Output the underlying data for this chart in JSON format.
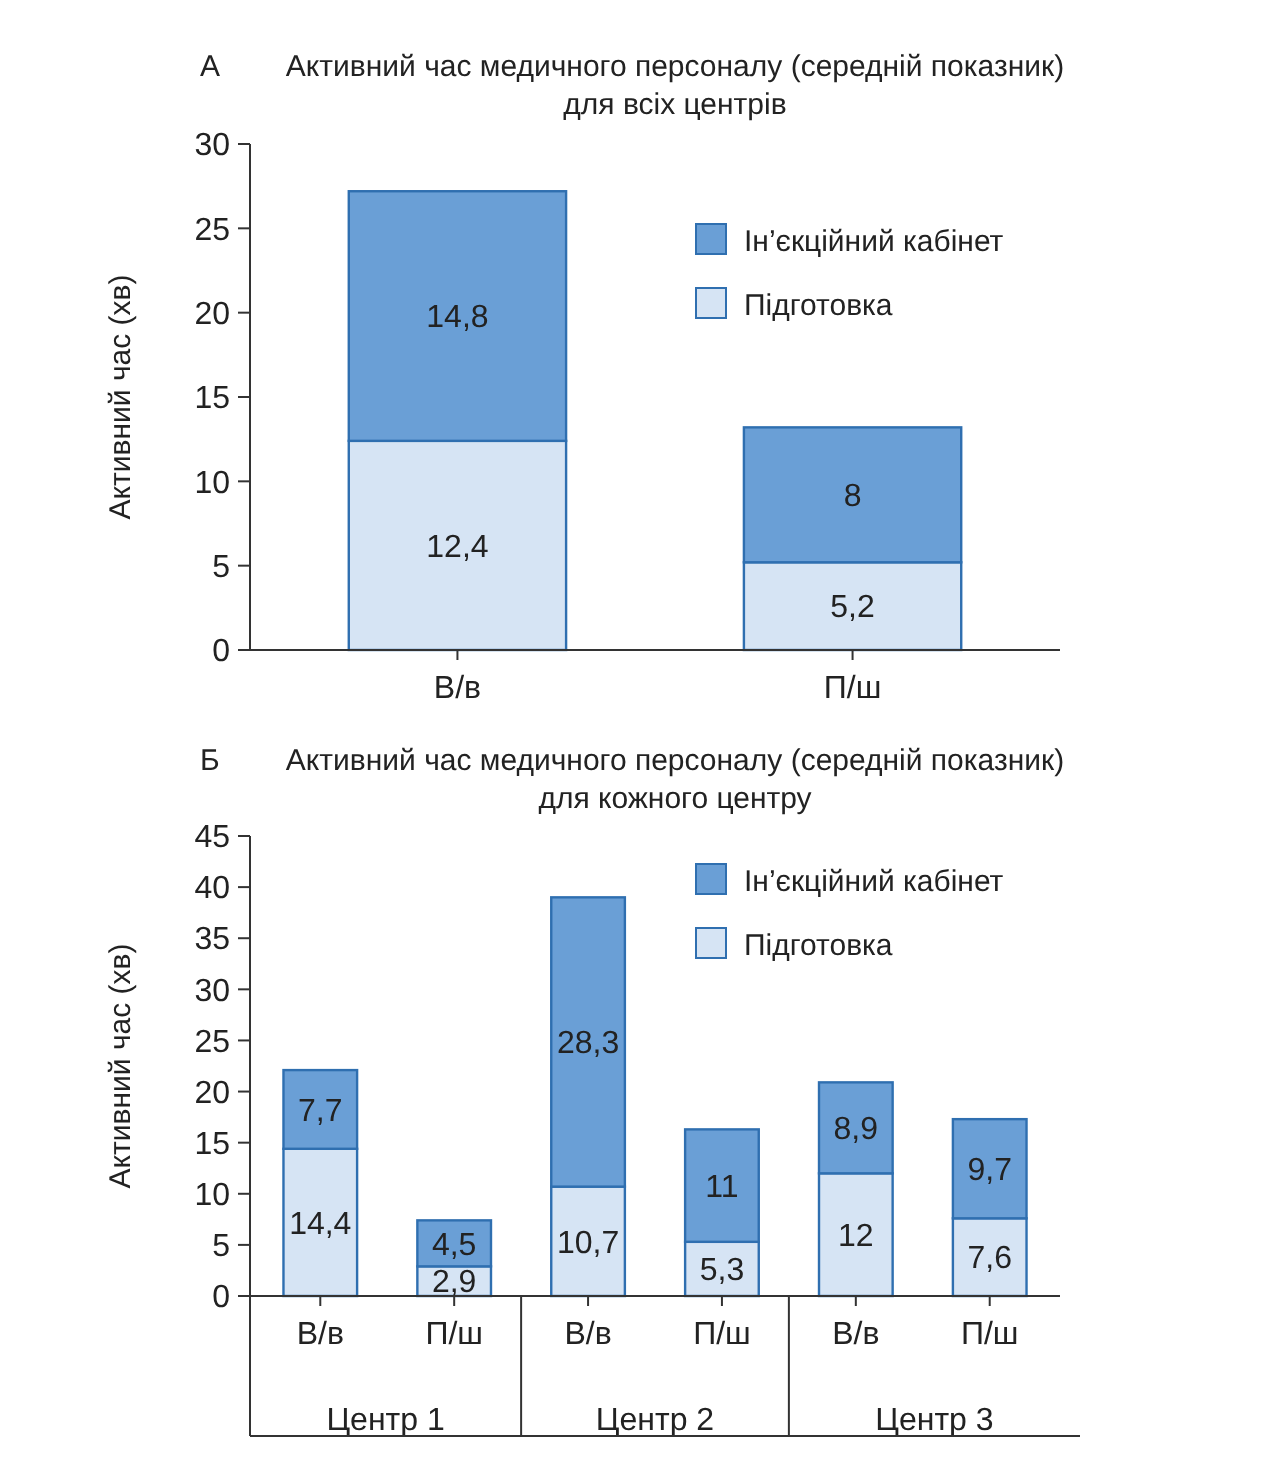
{
  "chart_data": [
    {
      "type": "bar",
      "title": "Активний час медичного персоналу (середній показник)\nдля всіх центрів",
      "ylabel": "Активний час (хв)",
      "annotations": [
        "А"
      ],
      "categories": [
        "В/в",
        "П/ш"
      ],
      "stacked": true,
      "legend": "top right",
      "ylim": [
        0,
        30
      ],
      "yticks": [
        0,
        5,
        10,
        15,
        20,
        25,
        30
      ],
      "series": [
        {
          "name": "Підготовка",
          "color": "#d6e4f4",
          "values": [
            12.4,
            5.2
          ],
          "value_labels": [
            "12,4",
            "5,2"
          ]
        },
        {
          "name": "Ін’єкційний кабінет",
          "color": "#6a9fd6",
          "values": [
            14.8,
            8
          ],
          "value_labels": [
            "14,8",
            "8"
          ]
        }
      ]
    },
    {
      "type": "bar",
      "title": "Активний час медичного персоналу (середній показник)\nдля кожного центру",
      "ylabel": "Активний час (хв)",
      "annotations": [
        "Б",
        "Центр 1",
        "Центр 2",
        "Центр 3"
      ],
      "categories": [
        "В/в",
        "П/ш",
        "В/в",
        "П/ш",
        "В/в",
        "П/ш"
      ],
      "stacked": true,
      "legend": "top right",
      "ylim": [
        0,
        45
      ],
      "yticks": [
        0,
        5,
        10,
        15,
        20,
        25,
        30,
        35,
        40,
        45
      ],
      "series": [
        {
          "name": "Підготовка",
          "color": "#d6e4f4",
          "values": [
            14.4,
            2.9,
            10.7,
            5.3,
            12,
            7.6
          ],
          "value_labels": [
            "14,4",
            "2,9",
            "10,7",
            "5,3",
            "12",
            "7,6"
          ]
        },
        {
          "name": "Ін’єкційний кабінет",
          "color": "#6a9fd6",
          "values": [
            7.7,
            4.5,
            28.3,
            11,
            8.9,
            9.7
          ],
          "value_labels": [
            "7,7",
            "4,5",
            "28,3",
            "11",
            "8,9",
            "9,7"
          ]
        }
      ]
    }
  ]
}
